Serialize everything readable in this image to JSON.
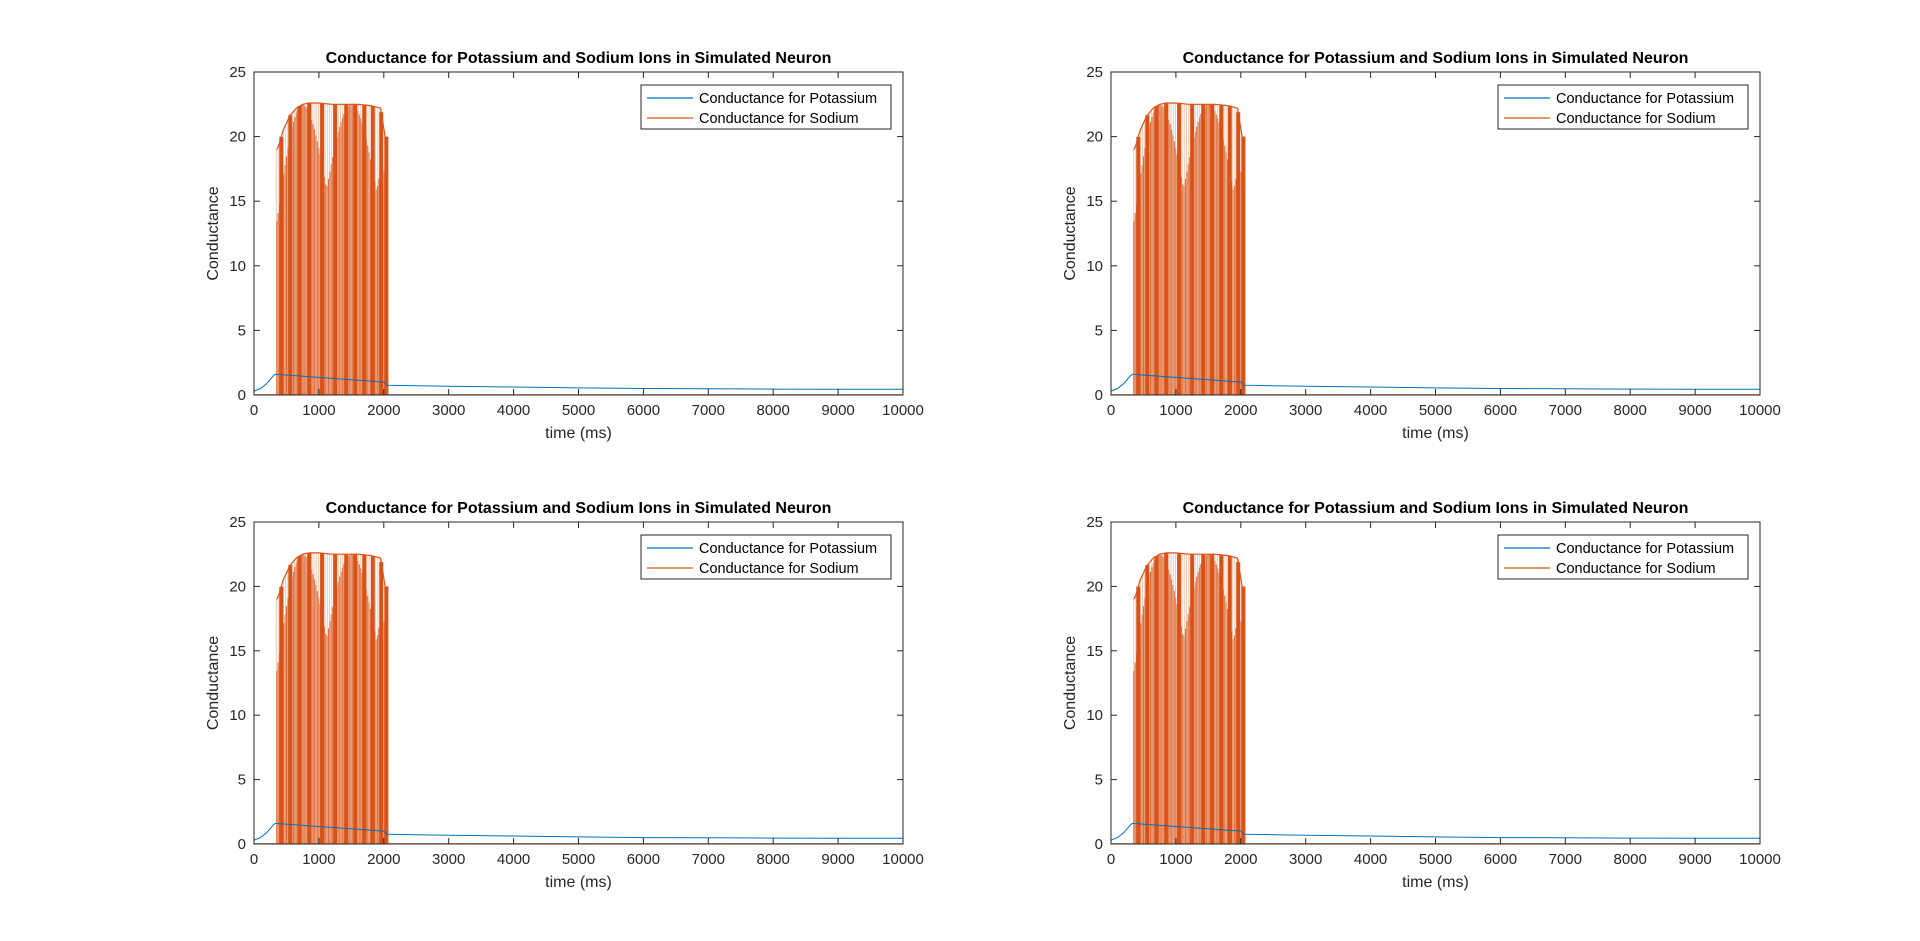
{
  "figure": {
    "background": "#ffffff",
    "layout": {
      "rows": 2,
      "cols": 2
    }
  },
  "chart_data": [
    {
      "type": "line",
      "title": "Conductance for Potassium and Sodium Ions in Simulated Neuron",
      "xlabel": "time (ms)",
      "ylabel": "Conductance",
      "xlim": [
        0,
        10000
      ],
      "ylim": [
        0,
        25
      ],
      "xticks": [
        0,
        1000,
        2000,
        3000,
        4000,
        5000,
        6000,
        7000,
        8000,
        9000,
        10000
      ],
      "yticks": [
        0,
        5,
        10,
        15,
        20,
        25
      ],
      "grid": false,
      "legend": "top-right",
      "series": [
        {
          "name": "Conductance for Potassium",
          "color": "#0072BD",
          "x": [
            0,
            100,
            200,
            300,
            330,
            2000,
            2050,
            2500,
            3000,
            4000,
            5000,
            6000,
            7000,
            8000,
            9000,
            10000
          ],
          "y": [
            0.3,
            0.5,
            0.9,
            1.5,
            1.6,
            1.0,
            0.75,
            0.72,
            0.68,
            0.62,
            0.55,
            0.5,
            0.48,
            0.46,
            0.45,
            0.45
          ]
        },
        {
          "name": "Conductance for Sodium",
          "color": "#D95319",
          "burst_start": 350,
          "burst_end": 2050,
          "envelope_x": [
            350,
            380,
            450,
            550,
            650,
            750,
            850,
            1000,
            1200,
            1400,
            1600,
            1800,
            1950,
            2020
          ],
          "envelope_y": [
            19,
            19.3,
            20.5,
            21.6,
            22.2,
            22.5,
            22.6,
            22.6,
            22.5,
            22.5,
            22.5,
            22.4,
            22.2,
            20.0
          ],
          "baseline": 0.02
        }
      ]
    },
    {
      "type": "line",
      "title": "Conductance for Potassium and Sodium Ions in Simulated Neuron",
      "xlabel": "time (ms)",
      "ylabel": "Conductance",
      "xlim": [
        0,
        10000
      ],
      "ylim": [
        0,
        25
      ],
      "xticks": [
        0,
        1000,
        2000,
        3000,
        4000,
        5000,
        6000,
        7000,
        8000,
        9000,
        10000
      ],
      "yticks": [
        0,
        5,
        10,
        15,
        20,
        25
      ],
      "grid": false,
      "legend": "top-right",
      "series": [
        {
          "name": "Conductance for Potassium",
          "color": "#0072BD",
          "x": [
            0,
            100,
            200,
            300,
            330,
            2000,
            2050,
            2500,
            3000,
            4000,
            5000,
            6000,
            7000,
            8000,
            9000,
            10000
          ],
          "y": [
            0.3,
            0.5,
            0.9,
            1.5,
            1.6,
            1.0,
            0.75,
            0.72,
            0.68,
            0.62,
            0.55,
            0.5,
            0.48,
            0.46,
            0.45,
            0.45
          ]
        },
        {
          "name": "Conductance for Sodium",
          "color": "#D95319",
          "burst_start": 350,
          "burst_end": 2050,
          "envelope_x": [
            350,
            380,
            450,
            550,
            650,
            750,
            850,
            1000,
            1200,
            1400,
            1600,
            1800,
            1950,
            2020
          ],
          "envelope_y": [
            19,
            19.3,
            20.5,
            21.6,
            22.2,
            22.5,
            22.6,
            22.6,
            22.5,
            22.5,
            22.5,
            22.4,
            22.2,
            20.0
          ],
          "baseline": 0.02
        }
      ]
    },
    {
      "type": "line",
      "title": "Conductance for Potassium and Sodium Ions in Simulated Neuron",
      "xlabel": "time (ms)",
      "ylabel": "Conductance",
      "xlim": [
        0,
        10000
      ],
      "ylim": [
        0,
        25
      ],
      "xticks": [
        0,
        1000,
        2000,
        3000,
        4000,
        5000,
        6000,
        7000,
        8000,
        9000,
        10000
      ],
      "yticks": [
        0,
        5,
        10,
        15,
        20,
        25
      ],
      "grid": false,
      "legend": "top-right",
      "series": [
        {
          "name": "Conductance for Potassium",
          "color": "#0072BD",
          "x": [
            0,
            100,
            200,
            300,
            330,
            2000,
            2050,
            2500,
            3000,
            4000,
            5000,
            6000,
            7000,
            8000,
            9000,
            10000
          ],
          "y": [
            0.3,
            0.5,
            0.9,
            1.5,
            1.6,
            1.0,
            0.75,
            0.72,
            0.68,
            0.62,
            0.55,
            0.5,
            0.48,
            0.46,
            0.45,
            0.45
          ]
        },
        {
          "name": "Conductance for Sodium",
          "color": "#D95319",
          "burst_start": 350,
          "burst_end": 2050,
          "envelope_x": [
            350,
            380,
            450,
            550,
            650,
            750,
            850,
            1000,
            1200,
            1400,
            1600,
            1800,
            1950,
            2020
          ],
          "envelope_y": [
            19,
            19.3,
            20.5,
            21.6,
            22.2,
            22.5,
            22.6,
            22.6,
            22.5,
            22.5,
            22.5,
            22.4,
            22.2,
            20.0
          ],
          "baseline": 0.02
        }
      ]
    },
    {
      "type": "line",
      "title": "Conductance for Potassium and Sodium Ions in Simulated Neuron",
      "xlabel": "time (ms)",
      "ylabel": "Conductance",
      "xlim": [
        0,
        10000
      ],
      "ylim": [
        0,
        25
      ],
      "xticks": [
        0,
        1000,
        2000,
        3000,
        4000,
        5000,
        6000,
        7000,
        8000,
        9000,
        10000
      ],
      "yticks": [
        0,
        5,
        10,
        15,
        20,
        25
      ],
      "grid": false,
      "legend": "top-right",
      "series": [
        {
          "name": "Conductance for Potassium",
          "color": "#0072BD",
          "x": [
            0,
            100,
            200,
            300,
            330,
            2000,
            2050,
            2500,
            3000,
            4000,
            5000,
            6000,
            7000,
            8000,
            9000,
            10000
          ],
          "y": [
            0.3,
            0.5,
            0.9,
            1.5,
            1.6,
            1.0,
            0.75,
            0.72,
            0.68,
            0.62,
            0.55,
            0.5,
            0.48,
            0.46,
            0.45,
            0.45
          ]
        },
        {
          "name": "Conductance for Sodium",
          "color": "#D95319",
          "burst_start": 350,
          "burst_end": 2050,
          "envelope_x": [
            350,
            380,
            450,
            550,
            650,
            750,
            850,
            1000,
            1200,
            1400,
            1600,
            1800,
            1950,
            2020
          ],
          "envelope_y": [
            19,
            19.3,
            20.5,
            21.6,
            22.2,
            22.5,
            22.6,
            22.6,
            22.5,
            22.5,
            22.5,
            22.4,
            22.2,
            20.0
          ],
          "baseline": 0.02
        }
      ]
    }
  ]
}
